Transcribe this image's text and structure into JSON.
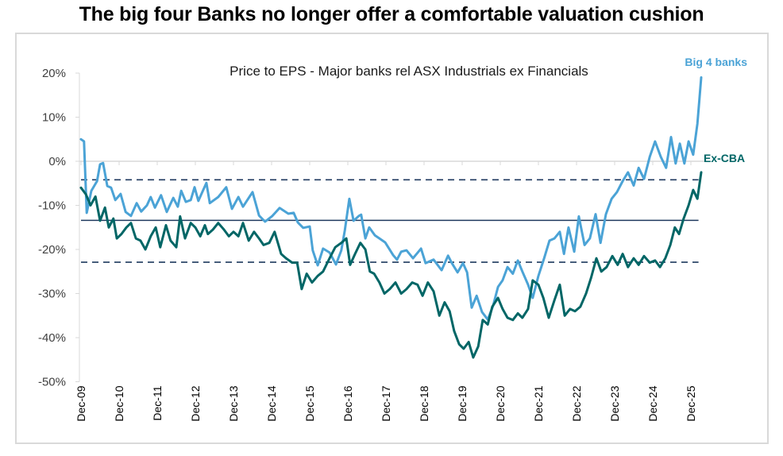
{
  "headline": "The big four Banks no longer offer a comfortable valuation cushion",
  "colors": {
    "big4": "#4ba3d6",
    "excba": "#006666",
    "reference": "#1f3a5f",
    "grid": "#d9d9d9",
    "axis_text": "#404040"
  },
  "chart_data": {
    "type": "line",
    "title": "Price to EPS - Major banks rel ASX Industrials ex Financials",
    "xlabel": "",
    "ylabel": "",
    "ylim": [
      -50,
      20
    ],
    "y_ticks": [
      20,
      10,
      0,
      -10,
      -20,
      -30,
      -40,
      -50
    ],
    "y_tick_labels": [
      "20%",
      "10%",
      "0%",
      "-10%",
      "-20%",
      "-30%",
      "-40%",
      "-50%"
    ],
    "x_tick_labels": [
      "Dec-09",
      "Dec-10",
      "Dec-11",
      "Dec-12",
      "Dec-13",
      "Dec-14",
      "Dec-15",
      "Dec-16",
      "Dec-17",
      "Dec-18",
      "Dec-19",
      "Dec-20",
      "Dec-21",
      "Dec-22",
      "Dec-23",
      "Dec-24",
      "Dec-25"
    ],
    "x_unit": "years since Dec-09",
    "xlim": [
      0,
      16.4
    ],
    "grid": "horizontal at 0% only",
    "reference_lines": [
      {
        "name": "upper band",
        "value": -4.2,
        "style": "dashed"
      },
      {
        "name": "average",
        "value": -13.4,
        "style": "solid"
      },
      {
        "name": "lower band",
        "value": -22.9,
        "style": "dashed"
      }
    ],
    "series": [
      {
        "name": "Big 4 banks",
        "label_position": "top-right",
        "x": [
          0,
          0.08,
          0.15,
          0.27,
          0.42,
          0.5,
          0.58,
          0.69,
          0.79,
          0.9,
          1.04,
          1.17,
          1.31,
          1.46,
          1.58,
          1.73,
          1.83,
          1.94,
          2.1,
          2.25,
          2.42,
          2.54,
          2.63,
          2.75,
          2.88,
          2.98,
          3.08,
          3.29,
          3.38,
          3.6,
          3.81,
          3.96,
          4.13,
          4.25,
          4.5,
          4.67,
          4.83,
          5.02,
          5.21,
          5.44,
          5.58,
          5.69,
          5.83,
          6.0,
          6.08,
          6.21,
          6.35,
          6.52,
          6.69,
          6.83,
          6.92,
          7.04,
          7.15,
          7.29,
          7.35,
          7.46,
          7.56,
          7.71,
          7.83,
          7.98,
          8.19,
          8.29,
          8.4,
          8.54,
          8.71,
          8.92,
          9.04,
          9.25,
          9.46,
          9.63,
          9.73,
          9.88,
          10.02,
          10.13,
          10.25,
          10.38,
          10.52,
          10.67,
          10.81,
          10.94,
          11.06,
          11.19,
          11.33,
          11.46,
          11.58,
          11.73,
          11.85,
          12.0,
          12.15,
          12.29,
          12.42,
          12.56,
          12.67,
          12.79,
          12.94,
          13.06,
          13.21,
          13.35,
          13.5,
          13.63,
          13.77,
          13.92,
          14.06,
          14.21,
          14.35,
          14.5,
          14.63,
          14.77,
          14.92,
          15.06,
          15.21,
          15.35,
          15.48,
          15.6,
          15.71,
          15.83,
          15.94,
          16.06,
          16.17,
          16.27
        ],
        "values": [
          5.0,
          4.5,
          -11.7,
          -6.7,
          -4.5,
          -0.7,
          -0.4,
          -5.6,
          -6.0,
          -8.8,
          -7.4,
          -11.5,
          -12.4,
          -9.5,
          -11.4,
          -10.0,
          -8.1,
          -10.5,
          -7.7,
          -11.5,
          -8.3,
          -10.3,
          -6.7,
          -9.2,
          -8.8,
          -5.9,
          -9.0,
          -4.9,
          -9.5,
          -8.1,
          -5.9,
          -10.8,
          -8.1,
          -10.3,
          -7.0,
          -12.3,
          -13.7,
          -12.4,
          -10.6,
          -11.9,
          -11.7,
          -13.9,
          -15.1,
          -14.8,
          -20.2,
          -23.6,
          -19.8,
          -20.7,
          -23.4,
          -20.2,
          -15.7,
          -8.5,
          -13.5,
          -12.4,
          -12.1,
          -17.5,
          -15.0,
          -16.8,
          -17.5,
          -18.4,
          -21.3,
          -22.3,
          -20.5,
          -20.2,
          -22.0,
          -19.8,
          -23.1,
          -22.3,
          -24.7,
          -21.4,
          -23.1,
          -25.2,
          -23.1,
          -25.2,
          -33.2,
          -30.5,
          -34.2,
          -35.9,
          -32.8,
          -28.5,
          -27.0,
          -24.0,
          -25.5,
          -22.5,
          -25.0,
          -28.0,
          -31.0,
          -26.0,
          -22.0,
          -18.0,
          -17.5,
          -16.0,
          -21.0,
          -15.0,
          -20.5,
          -12.5,
          -19.0,
          -17.5,
          -12.0,
          -18.5,
          -12.0,
          -8.5,
          -7.0,
          -4.5,
          -2.5,
          -5.5,
          -1.5,
          -4.0,
          1.0,
          4.5,
          1.0,
          -1.5,
          5.5,
          -0.5,
          4.0,
          -0.5,
          4.5,
          1.5,
          8.5,
          19.0
        ],
        "color_key": "big4"
      },
      {
        "name": "Ex-CBA",
        "label_position": "right",
        "x": [
          0,
          0.13,
          0.25,
          0.38,
          0.5,
          0.63,
          0.73,
          0.85,
          0.94,
          1.06,
          1.19,
          1.31,
          1.44,
          1.56,
          1.69,
          1.83,
          1.96,
          2.08,
          2.23,
          2.35,
          2.5,
          2.6,
          2.73,
          2.88,
          3.0,
          3.13,
          3.25,
          3.33,
          3.46,
          3.6,
          3.75,
          3.88,
          4.0,
          4.13,
          4.25,
          4.4,
          4.54,
          4.67,
          4.79,
          4.94,
          5.08,
          5.25,
          5.38,
          5.54,
          5.67,
          5.79,
          5.92,
          6.06,
          6.21,
          6.35,
          6.52,
          6.67,
          6.83,
          6.96,
          7.06,
          7.19,
          7.33,
          7.46,
          7.58,
          7.69,
          7.83,
          7.96,
          8.1,
          8.25,
          8.4,
          8.54,
          8.69,
          8.83,
          8.96,
          9.1,
          9.25,
          9.4,
          9.54,
          9.67,
          9.79,
          9.92,
          10.04,
          10.17,
          10.29,
          10.42,
          10.54,
          10.67,
          10.79,
          10.94,
          11.06,
          11.19,
          11.33,
          11.46,
          11.58,
          11.73,
          11.85,
          12.0,
          12.13,
          12.27,
          12.42,
          12.56,
          12.69,
          12.83,
          12.96,
          13.1,
          13.25,
          13.38,
          13.52,
          13.65,
          13.79,
          13.94,
          14.08,
          14.21,
          14.35,
          14.5,
          14.63,
          14.77,
          14.92,
          15.06,
          15.19,
          15.33,
          15.46,
          15.58,
          15.69,
          15.81,
          15.94,
          16.06,
          16.17,
          16.27
        ],
        "values": [
          -6.0,
          -7.5,
          -10.0,
          -8.0,
          -13.5,
          -10.5,
          -15.0,
          -13.0,
          -17.5,
          -16.5,
          -15.0,
          -14.0,
          -17.5,
          -18.0,
          -20.0,
          -17.0,
          -15.0,
          -19.5,
          -14.5,
          -18.0,
          -19.5,
          -12.5,
          -17.5,
          -14.0,
          -15.0,
          -17.0,
          -14.5,
          -16.5,
          -15.5,
          -14.0,
          -15.5,
          -17.0,
          -16.0,
          -17.0,
          -14.0,
          -18.0,
          -16.0,
          -17.5,
          -19.0,
          -18.5,
          -16.0,
          -21.0,
          -22.0,
          -23.0,
          -23.0,
          -29.0,
          -25.5,
          -27.5,
          -26.0,
          -25.0,
          -22.0,
          -19.5,
          -18.5,
          -17.5,
          -23.5,
          -21.0,
          -18.5,
          -20.0,
          -25.0,
          -25.5,
          -27.5,
          -30.0,
          -29.0,
          -27.5,
          -30.0,
          -29.0,
          -27.5,
          -28.0,
          -30.5,
          -27.5,
          -29.5,
          -35.0,
          -32.0,
          -34.0,
          -38.5,
          -41.5,
          -42.5,
          -41.0,
          -44.5,
          -42.0,
          -36.0,
          -37.0,
          -33.0,
          -31.0,
          -33.5,
          -35.5,
          -36.0,
          -34.5,
          -35.5,
          -33.5,
          -27.0,
          -28.0,
          -31.0,
          -35.5,
          -31.5,
          -28.0,
          -35.0,
          -33.5,
          -34.0,
          -33.0,
          -30.0,
          -26.5,
          -22.0,
          -25.0,
          -24.0,
          -21.5,
          -23.5,
          -21.0,
          -24.0,
          -22.0,
          -23.5,
          -21.5,
          -23.0,
          -22.5,
          -24.0,
          -22.0,
          -19.0,
          -15.0,
          -16.5,
          -13.0,
          -10.0,
          -6.5,
          -8.5,
          -2.5
        ],
        "color_key": "excba"
      }
    ]
  }
}
